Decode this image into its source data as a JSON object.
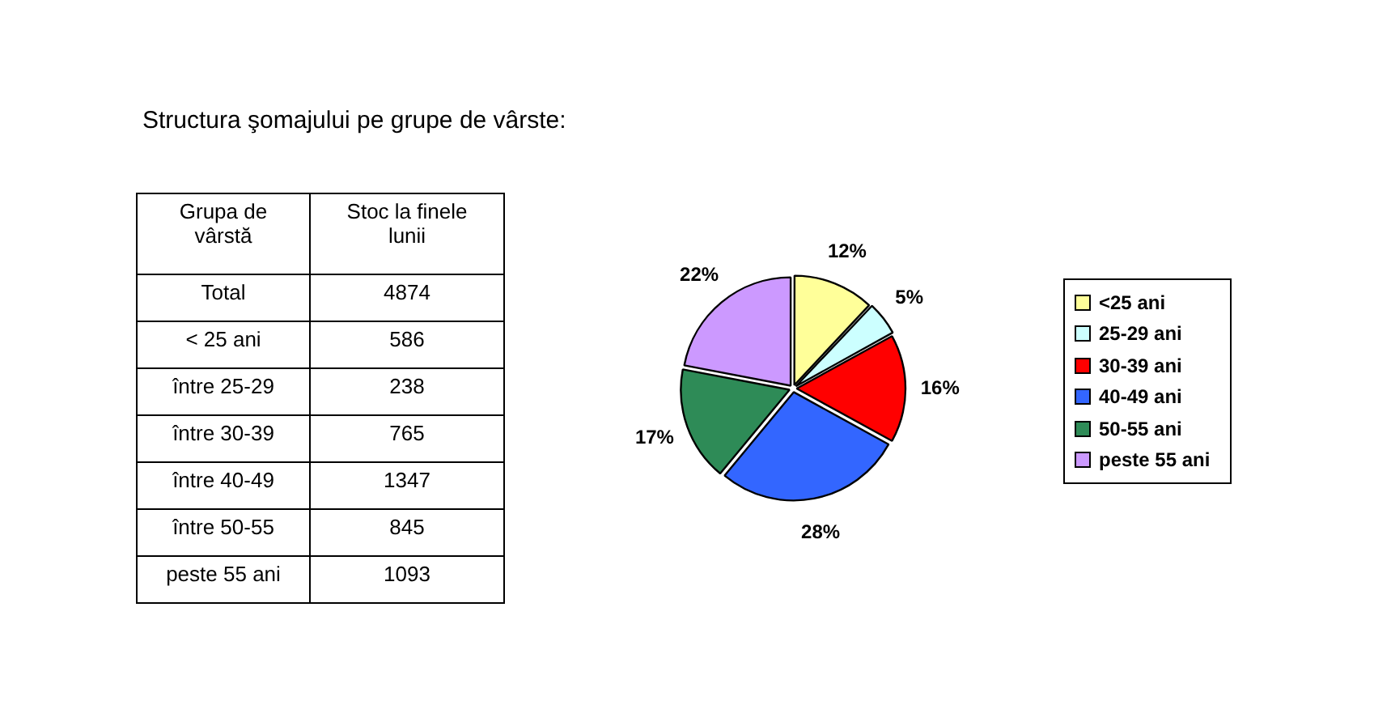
{
  "chart_data": {
    "type": "pie",
    "title": "Structura şomajului pe grupe de vârste:",
    "categories": [
      "<25 ani",
      "25-29 ani",
      "30-39 ani",
      "40-49 ani",
      "50-55 ani",
      "peste 55 ani"
    ],
    "values": [
      12,
      5,
      16,
      28,
      17,
      22
    ],
    "colors": [
      "#ffff99",
      "#ccffff",
      "#ff0000",
      "#3366ff",
      "#2e8b57",
      "#cc99ff"
    ],
    "value_labels": [
      "12%",
      "5%",
      "16%",
      "28%",
      "17%",
      "22%"
    ],
    "legend": "right",
    "annotations": [
      "Grupa de vârstă",
      "Stoc la finele lunii",
      "Total",
      "4874",
      "< 25 ani",
      "586",
      "între 25-29",
      "238",
      "între 30-39",
      "765",
      "între 40-49",
      "1347",
      "între 50-55",
      "845",
      "peste 55 ani",
      "1093"
    ]
  }
}
